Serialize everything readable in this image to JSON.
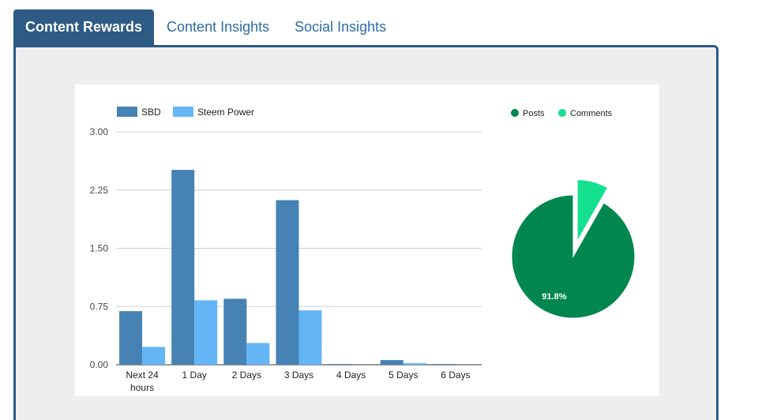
{
  "tabs": [
    {
      "label": "Content Rewards",
      "active": true
    },
    {
      "label": "Content Insights",
      "active": false
    },
    {
      "label": "Social Insights",
      "active": false
    }
  ],
  "colors": {
    "sbd": "#4682b4",
    "steem_power": "#64b5f6",
    "posts": "#00874f",
    "comments": "#14e090",
    "tab_active": "#2e5a86",
    "tab_link": "#2e6da4"
  },
  "chart_data": [
    {
      "type": "bar",
      "title": "",
      "xlabel": "",
      "ylabel": "",
      "categories": [
        "Next 24 hours",
        "1 Day",
        "2 Days",
        "3 Days",
        "4 Days",
        "5 Days",
        "6 Days"
      ],
      "series": [
        {
          "name": "SBD",
          "values": [
            0.69,
            2.51,
            0.85,
            2.12,
            0.01,
            0.06,
            0.01
          ]
        },
        {
          "name": "Steem Power",
          "values": [
            0.23,
            0.83,
            0.28,
            0.7,
            0.0,
            0.02,
            0.0
          ]
        }
      ],
      "ylim": [
        0,
        3
      ],
      "yticks": [
        "3.00",
        "2.25",
        "1.50",
        "0.75",
        "0.00"
      ],
      "legend_position": "top-left",
      "grid": true
    },
    {
      "type": "pie",
      "title": "",
      "categories": [
        "Posts",
        "Comments"
      ],
      "values": [
        91.8,
        8.2
      ],
      "slice_labels": [
        "91.8%",
        ""
      ],
      "exploded": [
        "Comments"
      ],
      "legend_position": "top"
    }
  ]
}
